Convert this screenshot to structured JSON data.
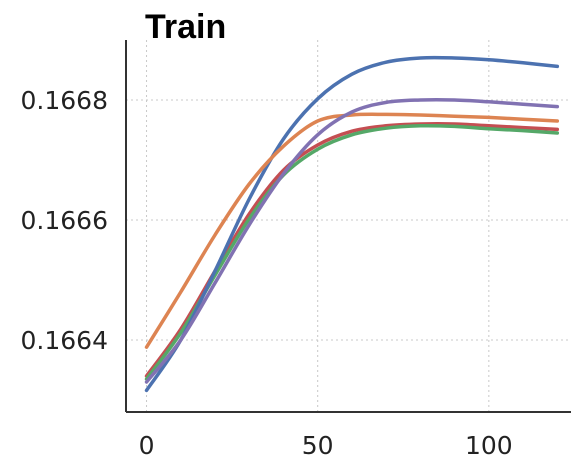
{
  "chart_data": {
    "type": "line",
    "title": "Train",
    "xlabel": "",
    "ylabel": "",
    "xlim": [
      -6,
      124
    ],
    "ylim": [
      0.16628,
      0.1669
    ],
    "xticks": [
      0,
      50,
      100
    ],
    "xtick_labels": [
      "0",
      "50",
      "100"
    ],
    "yticks": [
      0.1664,
      0.1666,
      0.1668
    ],
    "ytick_labels": [
      "0.1664",
      "0.1666",
      "0.1668"
    ],
    "grid": true,
    "series": [
      {
        "color": "#c44e52",
        "x": [
          0,
          10,
          20,
          30,
          40,
          50,
          60,
          70,
          80,
          90,
          100,
          110,
          120
        ],
        "y": [
          0.16634,
          0.166418,
          0.166515,
          0.16661,
          0.166683,
          0.166725,
          0.166748,
          0.166757,
          0.16676,
          0.16676,
          0.166757,
          0.166754,
          0.166751
        ]
      },
      {
        "color": "#55a868",
        "x": [
          0,
          10,
          20,
          30,
          40,
          50,
          60,
          70,
          80,
          90,
          100,
          110,
          120
        ],
        "y": [
          0.166335,
          0.166412,
          0.166508,
          0.166602,
          0.166675,
          0.166718,
          0.166742,
          0.166753,
          0.166757,
          0.166756,
          0.166752,
          0.166749,
          0.166745
        ]
      },
      {
        "color": "#4c72b0",
        "x": [
          0,
          10,
          20,
          30,
          40,
          50,
          60,
          70,
          80,
          90,
          100,
          110,
          120
        ],
        "y": [
          0.166316,
          0.1664,
          0.166515,
          0.166635,
          0.166735,
          0.166802,
          0.166843,
          0.166863,
          0.16687,
          0.16687,
          0.166867,
          0.166862,
          0.166856
        ]
      },
      {
        "color": "#dd8452",
        "x": [
          0,
          10,
          20,
          30,
          40,
          50,
          60,
          70,
          80,
          90,
          100,
          110,
          120
        ],
        "y": [
          0.166388,
          0.16648,
          0.166575,
          0.16666,
          0.166723,
          0.166765,
          0.166775,
          0.166776,
          0.166775,
          0.166773,
          0.166771,
          0.166768,
          0.166765
        ]
      },
      {
        "color": "#8172b2",
        "x": [
          0,
          10,
          20,
          30,
          40,
          50,
          60,
          70,
          80,
          90,
          100,
          110,
          120
        ],
        "y": [
          0.16633,
          0.1664,
          0.166495,
          0.166592,
          0.166677,
          0.166742,
          0.16678,
          0.166796,
          0.1668,
          0.1668,
          0.166797,
          0.166793,
          0.166789
        ]
      }
    ]
  }
}
